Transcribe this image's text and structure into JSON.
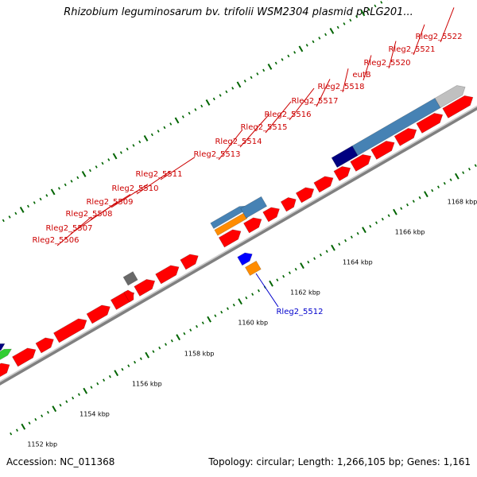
{
  "title": "Rhizobium leguminosarum bv. trifolii WSM2304 plasmid pRLG201...",
  "footer": {
    "accession": "Accession: NC_011368",
    "summary": "Topology: circular; Length: 1,266,105 bp; Genes: 1,161"
  },
  "colors": {
    "forward_gene": "#ff0000",
    "blue_gene": "#4682b4",
    "orange_gene": "#ff8c00",
    "navy_gene": "#000080",
    "gray_gene": "#c0c0c0",
    "dark_gray_gene": "#696969",
    "green_gene": "#32cd32",
    "bright_blue_gene": "#0000ff",
    "forward_label": "#cc0000",
    "reverse_label": "#0000cc",
    "backbone": "#808080",
    "tick": "#006400"
  },
  "kbp_labels": [
    "1152 kbp",
    "1154 kbp",
    "1156 kbp",
    "1158 kbp",
    "1160 kbp",
    "1162 kbp",
    "1164 kbp",
    "1166 kbp",
    "1168 kbp"
  ],
  "gene_labels": [
    {
      "name": "Rleg2_5506",
      "strand": "forward"
    },
    {
      "name": "Rleg2_5507",
      "strand": "forward"
    },
    {
      "name": "Rleg2_5508",
      "strand": "forward"
    },
    {
      "name": "Rleg2_5509",
      "strand": "forward"
    },
    {
      "name": "Rleg2_5510",
      "strand": "forward"
    },
    {
      "name": "Rleg2_5511",
      "strand": "forward"
    },
    {
      "name": "Rleg2_5513",
      "strand": "forward"
    },
    {
      "name": "Rleg2_5514",
      "strand": "forward"
    },
    {
      "name": "Rleg2_5515",
      "strand": "forward"
    },
    {
      "name": "Rleg2_5516",
      "strand": "forward"
    },
    {
      "name": "Rleg2_5517",
      "strand": "forward"
    },
    {
      "name": "Rleg2_5518",
      "strand": "forward"
    },
    {
      "name": "eutB",
      "strand": "forward"
    },
    {
      "name": "Rleg2_5520",
      "strand": "forward"
    },
    {
      "name": "Rleg2_5521",
      "strand": "forward"
    },
    {
      "name": "Rleg2_5522",
      "strand": "forward"
    },
    {
      "name": "Rleg2_5512",
      "strand": "reverse"
    }
  ]
}
